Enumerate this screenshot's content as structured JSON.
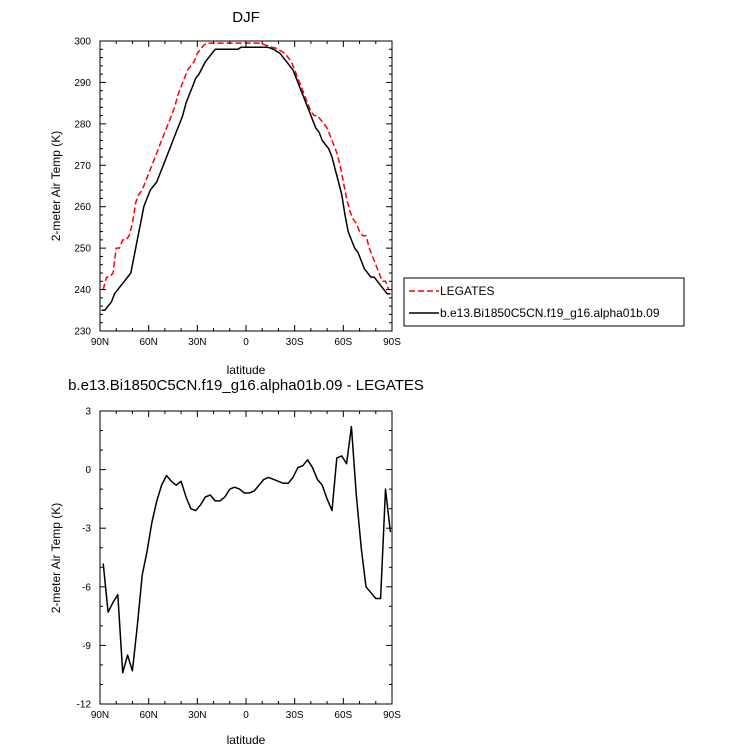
{
  "chart_data": [
    {
      "type": "line",
      "title": "DJF",
      "xlabel": "latitude",
      "ylabel": "2-meter Air Temp (K)",
      "xlim": [
        -90,
        90
      ],
      "ylim": [
        230,
        300
      ],
      "x_ticks": [
        -90,
        -60,
        -30,
        0,
        30,
        60,
        90
      ],
      "x_tick_labels": [
        "90N",
        "60N",
        "30N",
        "0",
        "30S",
        "60S",
        "90S"
      ],
      "y_ticks": [
        230,
        240,
        250,
        260,
        270,
        280,
        290,
        300
      ],
      "legend": {
        "position": "right"
      },
      "series": [
        {
          "name": "LEGATES",
          "color": "#ff0000",
          "style": "dashed",
          "x": [
            -88,
            -86,
            -84,
            -82,
            -80,
            -78,
            -76,
            -74,
            -72,
            -70,
            -68,
            -66,
            -64,
            -62,
            -60,
            -58,
            -56,
            -54,
            -52,
            -50,
            -48,
            -46,
            -44,
            -42,
            -40,
            -38,
            -36,
            -34,
            -32,
            -30,
            -28,
            -26,
            -24,
            -22,
            -20,
            -18,
            -16,
            -14,
            -12,
            -10,
            -8,
            -6,
            -4,
            -2,
            0,
            2,
            4,
            6,
            8,
            10,
            12,
            14,
            16,
            18,
            20,
            22,
            24,
            26,
            28,
            30,
            32,
            34,
            36,
            38,
            40,
            42,
            44,
            46,
            48,
            50,
            52,
            54,
            56,
            58,
            60,
            62,
            64,
            66,
            68,
            70,
            72,
            74,
            76,
            78,
            80,
            82,
            84,
            86,
            88
          ],
          "y": [
            240,
            243,
            243,
            244,
            250,
            250,
            252,
            252,
            253,
            256,
            261,
            263,
            264,
            266,
            268,
            270,
            272,
            274,
            276,
            278,
            280,
            282,
            284,
            287,
            289,
            291,
            293,
            294,
            295,
            297,
            298,
            299,
            299.5,
            299.5,
            299.5,
            299.5,
            299.5,
            299.5,
            299.5,
            299.5,
            299.5,
            299.5,
            299.5,
            299.5,
            299.5,
            299.5,
            299.5,
            299.5,
            299.5,
            299.3,
            299,
            298.8,
            298.5,
            298.3,
            298,
            297.5,
            297,
            296,
            295,
            293,
            291,
            289,
            287,
            285,
            283,
            282,
            282,
            281,
            280,
            279,
            277,
            275,
            273,
            270,
            266,
            262,
            259,
            257,
            256,
            254,
            253,
            253,
            250,
            248,
            246,
            244,
            242,
            242,
            240
          ]
        },
        {
          "name": "b.e13.Bi1850C5CN.f19_g16.alpha01b.09",
          "color": "#000000",
          "style": "solid",
          "x": [
            -89,
            -87,
            -85,
            -83,
            -81,
            -79,
            -77,
            -75,
            -73,
            -71,
            -69,
            -67,
            -65,
            -63,
            -61,
            -59,
            -57,
            -55,
            -53,
            -51,
            -49,
            -47,
            -45,
            -43,
            -41,
            -39,
            -37,
            -35,
            -33,
            -31,
            -29,
            -27,
            -25,
            -23,
            -21,
            -19,
            -17,
            -15,
            -13,
            -11,
            -9,
            -7,
            -5,
            -3,
            -1,
            1,
            3,
            5,
            7,
            9,
            11,
            13,
            15,
            17,
            19,
            21,
            23,
            25,
            27,
            29,
            31,
            33,
            35,
            37,
            39,
            41,
            43,
            45,
            47,
            49,
            51,
            53,
            55,
            57,
            59,
            61,
            63,
            65,
            67,
            69,
            71,
            73,
            75,
            77,
            79,
            81,
            83,
            85,
            87,
            89
          ],
          "y": [
            235,
            235,
            236,
            237,
            239,
            240,
            241,
            242,
            243,
            244,
            248,
            252,
            256,
            260,
            262,
            264,
            265,
            266,
            268,
            270,
            272,
            274,
            276,
            278,
            280,
            282,
            285,
            287,
            289,
            291,
            292,
            293.5,
            295,
            296,
            297,
            298,
            298,
            298,
            298,
            298,
            298,
            298,
            298,
            298.5,
            298.5,
            298.5,
            298.5,
            298.5,
            298.5,
            298.5,
            298.5,
            298.5,
            298.3,
            298,
            297.5,
            297,
            296,
            295,
            294,
            293,
            291,
            289,
            287,
            285,
            283,
            281,
            279,
            278,
            276,
            275,
            274,
            272,
            269,
            266,
            263,
            258,
            254,
            252,
            250,
            249,
            247,
            245,
            244,
            243,
            243,
            242,
            241,
            240,
            239,
            239
          ]
        }
      ]
    },
    {
      "type": "line",
      "title": "b.e13.Bi1850C5CN.f19_g16.alpha01b.09 - LEGATES",
      "xlabel": "latitude",
      "ylabel": "2-meter Air Temp (K)",
      "xlim": [
        -90,
        90
      ],
      "ylim": [
        -12,
        3
      ],
      "x_ticks": [
        -90,
        -60,
        -30,
        0,
        30,
        60,
        90
      ],
      "x_tick_labels": [
        "90N",
        "60N",
        "30N",
        "0",
        "30S",
        "60S",
        "90S"
      ],
      "y_ticks": [
        -12,
        -9,
        -6,
        -3,
        0,
        3
      ],
      "series": [
        {
          "color": "#000000",
          "style": "solid",
          "x": [
            -88,
            -85,
            -82,
            -79,
            -76,
            -73,
            -70,
            -67,
            -64,
            -61,
            -58,
            -55,
            -52,
            -49,
            -46,
            -43,
            -40,
            -37,
            -34,
            -31,
            -28,
            -25,
            -22,
            -19,
            -16,
            -13,
            -10,
            -7,
            -4,
            -1,
            2,
            5,
            8,
            11,
            14,
            17,
            20,
            23,
            26,
            29,
            32,
            35,
            38,
            41,
            44,
            47,
            50,
            53,
            56,
            59,
            62,
            65,
            68,
            71,
            74,
            77,
            80,
            83,
            86,
            89
          ],
          "y": [
            -4.8,
            -7.3,
            -6.8,
            -6.4,
            -10.4,
            -9.5,
            -10.3,
            -8,
            -5.4,
            -4.2,
            -2.7,
            -1.6,
            -0.8,
            -0.3,
            -0.6,
            -0.8,
            -0.6,
            -1.4,
            -2,
            -2.1,
            -1.8,
            -1.4,
            -1.3,
            -1.6,
            -1.6,
            -1.4,
            -1,
            -0.9,
            -1,
            -1.2,
            -1.2,
            -1.1,
            -0.8,
            -0.5,
            -0.4,
            -0.5,
            -0.6,
            -0.7,
            -0.7,
            -0.4,
            0.1,
            0.2,
            0.5,
            0.1,
            -0.5,
            -0.8,
            -1.5,
            -2.1,
            0.6,
            0.7,
            0.3,
            2.2,
            -1.3,
            -4,
            -6,
            -6.3,
            -6.6,
            -6.6,
            -1,
            -3.2
          ]
        }
      ]
    }
  ]
}
